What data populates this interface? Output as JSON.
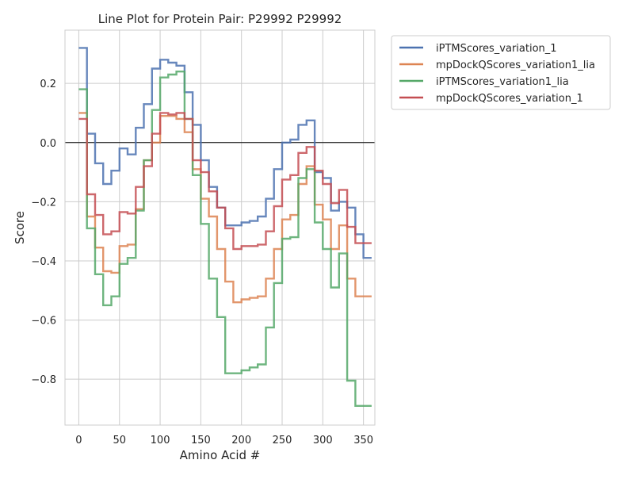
{
  "chart_data": {
    "type": "line",
    "title": "Line Plot for Protein Pair: P29992 P29992",
    "xlabel": "Amino Acid #",
    "ylabel": "Score",
    "xlim": [
      -17,
      364
    ],
    "ylim": [
      -0.955,
      0.38
    ],
    "xticks": [
      0,
      50,
      100,
      150,
      200,
      250,
      300,
      350
    ],
    "yticks": [
      0.2,
      0.0,
      -0.2,
      -0.4,
      -0.6,
      -0.8
    ],
    "ytick_labels": [
      "0.2",
      "0.0",
      "−0.2",
      "−0.4",
      "−0.6",
      "−0.8"
    ],
    "grid": true,
    "hline_y": 0,
    "legend_position": "outside-top-right",
    "drawstyle": "steps-post",
    "series": [
      {
        "name": "iPTMScores_variation_1",
        "color": "#4c72b0",
        "x": [
          0,
          10,
          20,
          30,
          40,
          50,
          60,
          70,
          80,
          90,
          100,
          110,
          120,
          130,
          140,
          150,
          160,
          170,
          180,
          190,
          200,
          210,
          220,
          230,
          240,
          250,
          260,
          270,
          280,
          290,
          300,
          310,
          320,
          330,
          340,
          350
        ],
        "y": [
          0.32,
          0.03,
          -0.07,
          -0.14,
          -0.095,
          -0.02,
          -0.04,
          0.05,
          0.13,
          0.25,
          0.28,
          0.27,
          0.26,
          0.17,
          0.06,
          -0.06,
          -0.15,
          -0.22,
          -0.28,
          -0.28,
          -0.27,
          -0.265,
          -0.25,
          -0.19,
          -0.09,
          0.0,
          0.01,
          0.06,
          0.075,
          -0.1,
          -0.12,
          -0.23,
          -0.2,
          -0.22,
          -0.31,
          -0.39
        ]
      },
      {
        "name": "mpDockQScores_variation1_lia",
        "color": "#dd8452",
        "x": [
          0,
          10,
          20,
          30,
          40,
          50,
          60,
          70,
          80,
          90,
          100,
          110,
          120,
          130,
          140,
          150,
          160,
          170,
          180,
          190,
          200,
          210,
          220,
          230,
          240,
          250,
          260,
          270,
          280,
          290,
          300,
          310,
          320,
          330,
          340,
          350
        ],
        "y": [
          0.1,
          -0.25,
          -0.355,
          -0.435,
          -0.44,
          -0.35,
          -0.345,
          -0.225,
          -0.06,
          0.0,
          0.09,
          0.09,
          0.08,
          0.035,
          -0.09,
          -0.19,
          -0.25,
          -0.36,
          -0.47,
          -0.54,
          -0.53,
          -0.525,
          -0.52,
          -0.46,
          -0.36,
          -0.26,
          -0.245,
          -0.14,
          -0.08,
          -0.21,
          -0.26,
          -0.36,
          -0.28,
          -0.46,
          -0.52,
          -0.52
        ]
      },
      {
        "name": "iPTMScores_variation1_lia",
        "color": "#55a868",
        "x": [
          0,
          10,
          20,
          30,
          40,
          50,
          60,
          70,
          80,
          90,
          100,
          110,
          120,
          130,
          140,
          150,
          160,
          170,
          180,
          190,
          200,
          210,
          220,
          230,
          240,
          250,
          260,
          270,
          280,
          290,
          300,
          310,
          320,
          330,
          340,
          350
        ],
        "y": [
          0.18,
          -0.29,
          -0.445,
          -0.55,
          -0.52,
          -0.41,
          -0.39,
          -0.23,
          -0.06,
          0.11,
          0.22,
          0.23,
          0.24,
          0.08,
          -0.11,
          -0.275,
          -0.46,
          -0.59,
          -0.78,
          -0.78,
          -0.77,
          -0.76,
          -0.75,
          -0.625,
          -0.475,
          -0.325,
          -0.32,
          -0.12,
          -0.09,
          -0.27,
          -0.36,
          -0.49,
          -0.375,
          -0.805,
          -0.89,
          -0.89
        ]
      },
      {
        "name": "mpDockQScores_variation_1",
        "color": "#c44e52",
        "x": [
          0,
          10,
          20,
          30,
          40,
          50,
          60,
          70,
          80,
          90,
          100,
          110,
          120,
          130,
          140,
          150,
          160,
          170,
          180,
          190,
          200,
          210,
          220,
          230,
          240,
          250,
          260,
          270,
          280,
          290,
          300,
          310,
          320,
          330,
          340,
          350
        ],
        "y": [
          0.08,
          -0.175,
          -0.245,
          -0.31,
          -0.3,
          -0.235,
          -0.24,
          -0.15,
          -0.08,
          0.03,
          0.1,
          0.095,
          0.1,
          0.08,
          -0.06,
          -0.1,
          -0.165,
          -0.22,
          -0.29,
          -0.36,
          -0.35,
          -0.35,
          -0.345,
          -0.3,
          -0.215,
          -0.125,
          -0.11,
          -0.035,
          -0.015,
          -0.095,
          -0.14,
          -0.205,
          -0.16,
          -0.285,
          -0.34,
          -0.34
        ]
      }
    ]
  }
}
